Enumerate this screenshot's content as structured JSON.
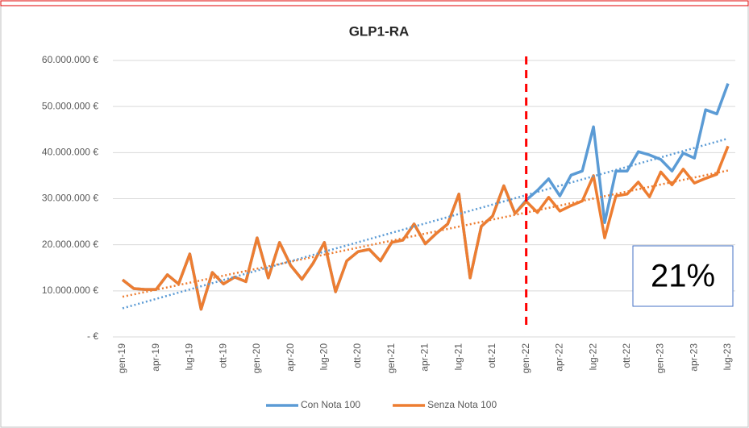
{
  "chart_data": {
    "type": "line",
    "title": "GLP1-RA",
    "categories": [
      "gen-19",
      null,
      null,
      "apr-19",
      null,
      null,
      "lug-19",
      null,
      null,
      "ott-19",
      null,
      null,
      "gen-20",
      null,
      null,
      "apr-20",
      null,
      null,
      "lug-20",
      null,
      null,
      "ott-20",
      null,
      null,
      "gen-21",
      null,
      null,
      "apr-21",
      null,
      null,
      "lug-21",
      null,
      null,
      "ott-21",
      null,
      null,
      "gen-22",
      null,
      null,
      "apr-22",
      null,
      null,
      "lug-22",
      null,
      null,
      "ott-22",
      null,
      null,
      "gen-23",
      null,
      null,
      "apr-23",
      null,
      null,
      "lug-23"
    ],
    "series": [
      {
        "name": "Con Nota 100",
        "color": "#5b9bd5",
        "values": [
          12400000,
          10500000,
          10300000,
          10300000,
          13500000,
          11500000,
          18000000,
          6000000,
          14000000,
          11500000,
          13000000,
          12000000,
          21500000,
          12800000,
          20500000,
          15500000,
          12500000,
          16000000,
          20500000,
          9800000,
          16500000,
          18500000,
          19000000,
          16500000,
          20500000,
          21000000,
          24500000,
          20200000,
          22500000,
          24500000,
          31000000,
          12800000,
          24000000,
          26200000,
          32800000,
          26800000,
          29700000,
          31800000,
          34300000,
          30600000,
          35100000,
          36000000,
          45600000,
          24800000,
          36000000,
          36000000,
          40200000,
          39500000,
          38500000,
          36000000,
          39900000,
          38800000,
          49300000,
          48400000,
          55000000
        ]
      },
      {
        "name": "Senza Nota 100",
        "color": "#ed7d31",
        "values": [
          12400000,
          10500000,
          10300000,
          10300000,
          13500000,
          11500000,
          18000000,
          6000000,
          14000000,
          11500000,
          13000000,
          12000000,
          21500000,
          12800000,
          20500000,
          15500000,
          12500000,
          16000000,
          20500000,
          9800000,
          16500000,
          18500000,
          19000000,
          16500000,
          20500000,
          21000000,
          24500000,
          20200000,
          22500000,
          24500000,
          31000000,
          12800000,
          24000000,
          26200000,
          32800000,
          26800000,
          29400000,
          27000000,
          30300000,
          27300000,
          28500000,
          29500000,
          35000000,
          21500000,
          30600000,
          31000000,
          33600000,
          30400000,
          35800000,
          33000000,
          36400000,
          33400000,
          34400000,
          35300000,
          41400000
        ]
      }
    ],
    "ylim": [
      0,
      60000000
    ],
    "yticks": [
      {
        "value": 0,
        "label": "-   €"
      },
      {
        "value": 10000000,
        "label": "10.000.000 €"
      },
      {
        "value": 20000000,
        "label": "20.000.000 €"
      },
      {
        "value": 30000000,
        "label": "30.000.000 €"
      },
      {
        "value": 40000000,
        "label": "40.000.000 €"
      },
      {
        "value": 50000000,
        "label": "50.000.000 €"
      },
      {
        "value": 60000000,
        "label": "60.000.000 €"
      }
    ],
    "grid": true,
    "trendline": true,
    "legend": "bottom",
    "vline": {
      "index": 36,
      "color": "#ff0000"
    },
    "annotation": "21%"
  }
}
